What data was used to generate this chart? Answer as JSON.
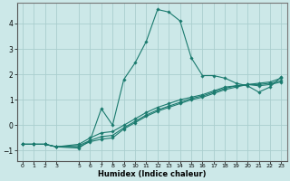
{
  "xlabel": "Humidex (Indice chaleur)",
  "background_color": "#cce8e8",
  "grid_color": "#aacece",
  "line_color": "#1a7a6e",
  "xlim": [
    -0.5,
    23.5
  ],
  "ylim": [
    -1.4,
    4.8
  ],
  "xticks": [
    0,
    1,
    2,
    3,
    5,
    6,
    7,
    8,
    9,
    10,
    11,
    12,
    13,
    14,
    15,
    16,
    17,
    18,
    19,
    20,
    21,
    22,
    23
  ],
  "yticks": [
    -1,
    0,
    1,
    2,
    3,
    4
  ],
  "lines": [
    {
      "x": [
        0,
        1,
        2,
        3,
        5,
        6,
        7,
        8,
        9,
        10,
        11,
        12,
        13,
        14,
        15,
        16,
        17,
        18,
        19,
        20,
        21,
        22,
        23
      ],
      "y": [
        -0.75,
        -0.75,
        -0.75,
        -0.85,
        -0.9,
        -0.6,
        0.65,
        0.0,
        1.8,
        2.45,
        3.3,
        4.55,
        4.45,
        4.1,
        2.65,
        1.95,
        1.95,
        1.85,
        1.65,
        1.55,
        1.3,
        1.5,
        1.9
      ]
    },
    {
      "x": [
        0,
        1,
        2,
        3,
        5,
        6,
        7,
        8,
        9,
        10,
        11,
        12,
        13,
        14,
        15,
        16,
        17,
        18,
        19,
        20,
        21,
        22,
        23
      ],
      "y": [
        -0.75,
        -0.75,
        -0.75,
        -0.85,
        -0.85,
        -0.65,
        -0.55,
        -0.5,
        -0.15,
        0.1,
        0.35,
        0.55,
        0.7,
        0.85,
        1.0,
        1.1,
        1.25,
        1.4,
        1.5,
        1.6,
        1.65,
        1.7,
        1.85
      ]
    },
    {
      "x": [
        0,
        1,
        2,
        3,
        5,
        6,
        7,
        8,
        9,
        10,
        11,
        12,
        13,
        14,
        15,
        16,
        17,
        18,
        19,
        20,
        21,
        22,
        23
      ],
      "y": [
        -0.75,
        -0.75,
        -0.75,
        -0.85,
        -0.8,
        -0.6,
        -0.45,
        -0.4,
        -0.1,
        0.15,
        0.4,
        0.6,
        0.75,
        0.9,
        1.05,
        1.15,
        1.3,
        1.45,
        1.55,
        1.6,
        1.6,
        1.65,
        1.75
      ]
    },
    {
      "x": [
        0,
        1,
        2,
        3,
        5,
        6,
        7,
        8,
        9,
        10,
        11,
        12,
        13,
        14,
        15,
        16,
        17,
        18,
        19,
        20,
        21,
        22,
        23
      ],
      "y": [
        -0.75,
        -0.75,
        -0.75,
        -0.85,
        -0.75,
        -0.5,
        -0.3,
        -0.25,
        0.0,
        0.25,
        0.5,
        0.7,
        0.85,
        1.0,
        1.1,
        1.2,
        1.35,
        1.5,
        1.55,
        1.6,
        1.55,
        1.6,
        1.7
      ]
    }
  ]
}
